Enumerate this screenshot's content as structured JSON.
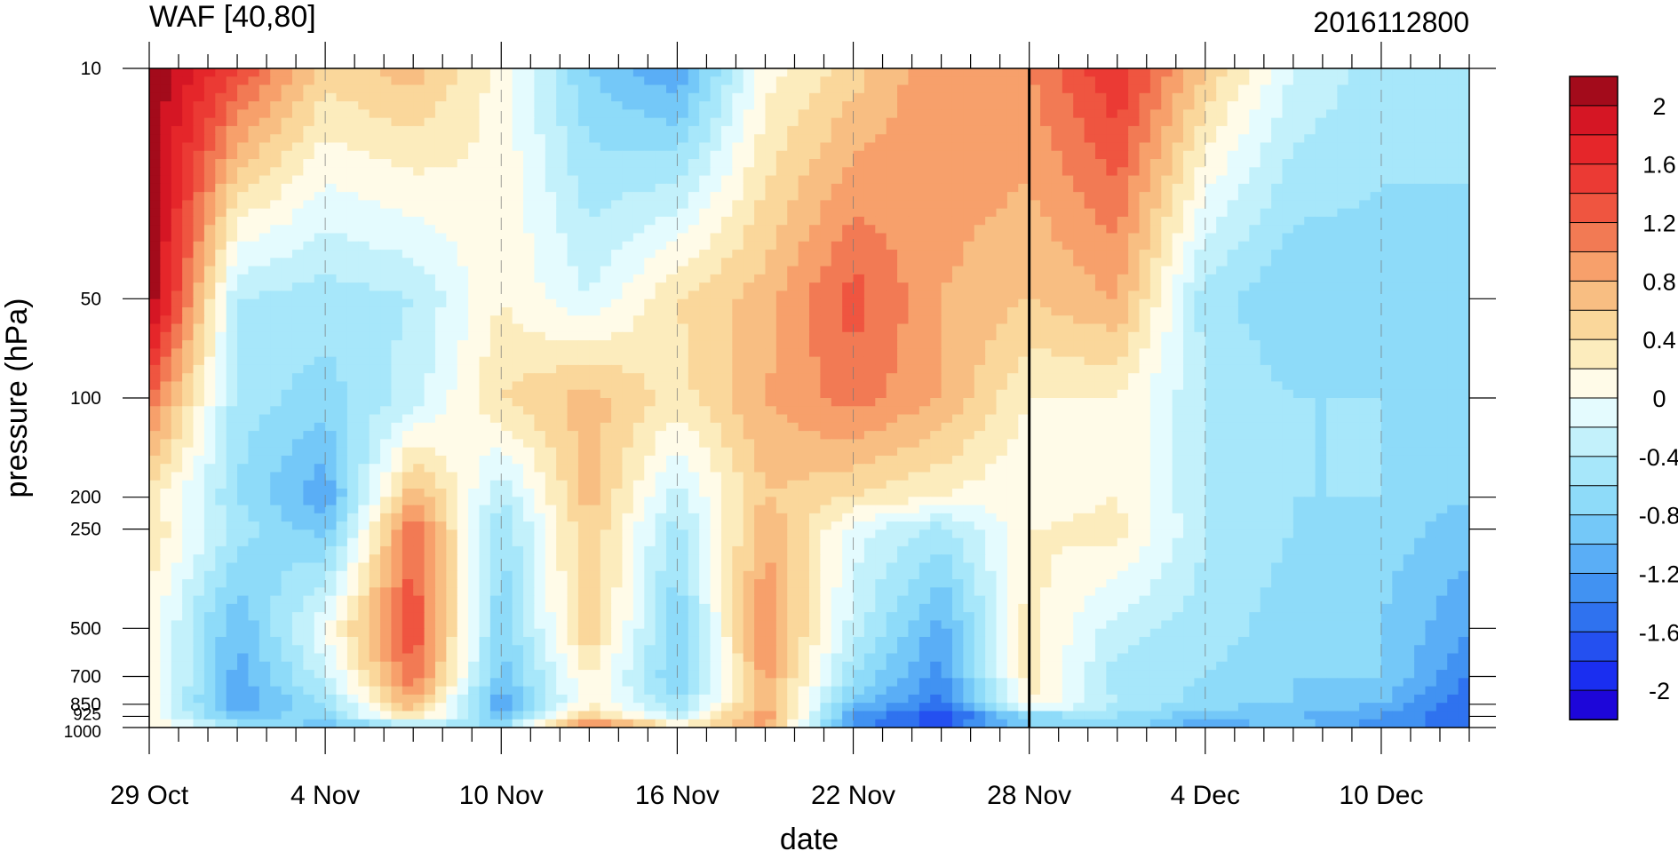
{
  "chart_data": {
    "type": "heatmap",
    "title": "WAF [40,80]",
    "title_right": "2016112800",
    "xlabel": "date",
    "ylabel": "pressure (hPa)",
    "x_tick_labels": [
      "29 Oct",
      "4 Nov",
      "10 Nov",
      "16 Nov",
      "22 Nov",
      "28 Nov",
      "4 Dec",
      "10 Dec"
    ],
    "x_tick_days": [
      0,
      6,
      12,
      18,
      24,
      30,
      36,
      42
    ],
    "xlim_days": [
      0,
      45
    ],
    "marker_day": 30,
    "y_levels": [
      1000,
      925,
      850,
      700,
      500,
      250,
      200,
      100,
      50,
      10
    ],
    "y_tick_labels": [
      "1000",
      "925",
      "850",
      "700",
      "500",
      "250",
      "200",
      "100",
      "50",
      "10"
    ],
    "y_scale": "log",
    "ylim": [
      1000,
      10
    ],
    "colorbar": {
      "levels": [
        -2.2,
        -2,
        -1.8,
        -1.6,
        -1.4,
        -1.2,
        -1,
        -0.8,
        -0.6,
        -0.4,
        -0.2,
        0,
        0.2,
        0.4,
        0.6,
        0.8,
        1,
        1.2,
        1.4,
        1.6,
        1.8,
        2,
        2.2
      ],
      "colors": [
        "#1d06d9",
        "#1a2ef0",
        "#2450f0",
        "#2f72ef",
        "#4192f2",
        "#5aaef6",
        "#74c8f8",
        "#8edbf9",
        "#a7e7fa",
        "#c3f1fb",
        "#e4fbfe",
        "#fffbe8",
        "#fcecbd",
        "#fad79b",
        "#f8be82",
        "#f7a06b",
        "#f27a54",
        "#ef5540",
        "#eb3a34",
        "#e5262a",
        "#d51624",
        "#a30b1b"
      ],
      "tick_labels": [
        "2",
        "1.6",
        "1.2",
        "0.8",
        "0.4",
        "0",
        "-0.4",
        "-0.8",
        "-1.2",
        "-1.6",
        "-2"
      ],
      "tick_values": [
        2,
        1.6,
        1.2,
        0.8,
        0.4,
        0,
        -0.4,
        -0.8,
        -1.2,
        -1.6,
        -2
      ]
    },
    "x_days": [
      0,
      3,
      6,
      9,
      12,
      15,
      18,
      21,
      24,
      27,
      30,
      33,
      36,
      39,
      42,
      45
    ],
    "z": [
      [
        0.2,
        -0.4,
        -1.0,
        -0.6,
        -0.6,
        1.2,
        0.4,
        0.8,
        -1.4,
        -1.6,
        -0.8,
        -0.6,
        -1.2,
        -0.8,
        -1.4,
        -1.4
      ],
      [
        0.1,
        -0.9,
        -0.7,
        0.4,
        -0.9,
        0.6,
        -0.3,
        1.0,
        -1.2,
        -1.8,
        -0.7,
        -0.6,
        -1.0,
        -1.0,
        -1.2,
        -1.6
      ],
      [
        0.1,
        -1.2,
        -0.6,
        0.8,
        -1.2,
        0.2,
        -0.6,
        0.8,
        -0.9,
        -1.5,
        0.2,
        -0.4,
        -0.7,
        -0.8,
        -1.0,
        -1.6
      ],
      [
        0.2,
        -1.1,
        -0.3,
        1.2,
        -0.9,
        0.2,
        -0.8,
        0.9,
        -0.6,
        -1.3,
        0.3,
        -0.5,
        -0.6,
        -0.8,
        -0.8,
        -1.4
      ],
      [
        0.1,
        -1.0,
        0.0,
        1.4,
        -0.8,
        0.6,
        -0.8,
        1.0,
        -0.3,
        -1.1,
        0.3,
        -0.3,
        -0.5,
        -0.7,
        -0.8,
        -1.2
      ],
      [
        0.4,
        -0.5,
        -0.9,
        1.2,
        -0.6,
        0.6,
        -0.5,
        0.8,
        -0.1,
        -0.5,
        0.2,
        0.3,
        -0.4,
        -0.6,
        -0.7,
        -0.9
      ],
      [
        0.3,
        -0.6,
        -1.2,
        0.8,
        -0.4,
        0.7,
        -0.3,
        0.6,
        0.4,
        0.2,
        0.0,
        0.2,
        -0.4,
        -0.6,
        -0.6,
        -0.8
      ],
      [
        1.2,
        -0.5,
        -0.7,
        -0.3,
        0.4,
        0.7,
        0.3,
        0.8,
        1.1,
        0.8,
        0.2,
        0.2,
        -0.4,
        -0.6,
        -0.6,
        -0.7
      ],
      [
        2.2,
        -0.4,
        -0.5,
        -0.4,
        0.2,
        -0.2,
        0.4,
        0.7,
        1.3,
        0.8,
        0.6,
        0.8,
        -0.5,
        -0.8,
        -0.7,
        -0.6
      ],
      [
        2.2,
        1.4,
        0.5,
        0.7,
        0.1,
        -0.8,
        -1.2,
        0.1,
        0.5,
        1.0,
        1.0,
        1.6,
        0.6,
        -0.2,
        -0.5,
        -0.6
      ]
    ]
  }
}
